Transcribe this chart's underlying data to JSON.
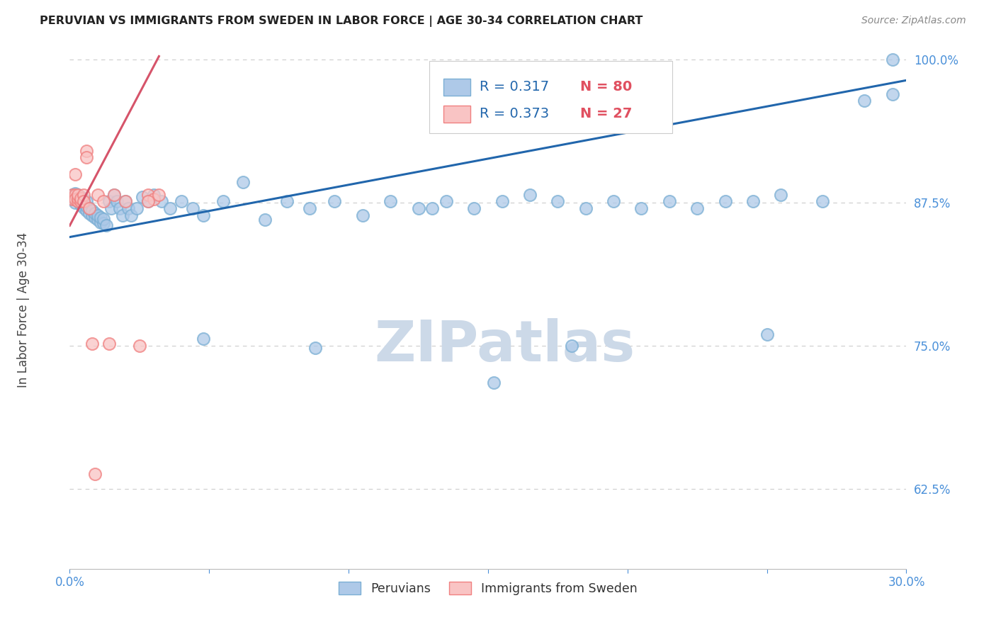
{
  "title": "PERUVIAN VS IMMIGRANTS FROM SWEDEN IN LABOR FORCE | AGE 30-34 CORRELATION CHART",
  "source": "Source: ZipAtlas.com",
  "ylabel": "In Labor Force | Age 30-34",
  "watermark": "ZIPatlas",
  "xlim": [
    0.0,
    0.3
  ],
  "ylim": [
    0.555,
    1.008
  ],
  "xticks": [
    0.0,
    0.05,
    0.1,
    0.15,
    0.2,
    0.25,
    0.3
  ],
  "xticklabels": [
    "0.0%",
    "",
    "",
    "",
    "",
    "",
    "30.0%"
  ],
  "yticks": [
    0.625,
    0.75,
    0.875,
    1.0
  ],
  "yticklabels": [
    "62.5%",
    "75.0%",
    "87.5%",
    "100.0%"
  ],
  "blue_face_color": "#aec9e8",
  "blue_edge_color": "#7bafd4",
  "pink_face_color": "#f9c4c4",
  "pink_edge_color": "#f08080",
  "blue_line_color": "#2166ac",
  "pink_line_color": "#d6546a",
  "title_color": "#222222",
  "source_color": "#888888",
  "tick_color": "#4a90d9",
  "legend_r_color": "#2166ac",
  "legend_n_color": "#e05060",
  "watermark_color": "#ccd9e8",
  "grid_color": "#cccccc",
  "blue_x": [
    0.001,
    0.001,
    0.002,
    0.002,
    0.002,
    0.003,
    0.003,
    0.003,
    0.004,
    0.004,
    0.004,
    0.005,
    0.005,
    0.005,
    0.006,
    0.006,
    0.006,
    0.007,
    0.007,
    0.008,
    0.008,
    0.009,
    0.009,
    0.01,
    0.01,
    0.011,
    0.011,
    0.012,
    0.012,
    0.013,
    0.014,
    0.015,
    0.016,
    0.017,
    0.018,
    0.019,
    0.02,
    0.021,
    0.022,
    0.024,
    0.026,
    0.028,
    0.03,
    0.033,
    0.036,
    0.04,
    0.044,
    0.048,
    0.055,
    0.062,
    0.07,
    0.078,
    0.086,
    0.095,
    0.105,
    0.115,
    0.125,
    0.135,
    0.145,
    0.155,
    0.165,
    0.175,
    0.185,
    0.195,
    0.205,
    0.215,
    0.225,
    0.235,
    0.245,
    0.255,
    0.152,
    0.088,
    0.048,
    0.13,
    0.18,
    0.25,
    0.27,
    0.285,
    0.295,
    0.295
  ],
  "blue_y": [
    0.882,
    0.878,
    0.88,
    0.875,
    0.883,
    0.876,
    0.879,
    0.882,
    0.873,
    0.877,
    0.88,
    0.871,
    0.875,
    0.878,
    0.868,
    0.872,
    0.876,
    0.866,
    0.87,
    0.864,
    0.868,
    0.862,
    0.866,
    0.86,
    0.864,
    0.858,
    0.862,
    0.857,
    0.861,
    0.855,
    0.876,
    0.87,
    0.882,
    0.876,
    0.87,
    0.864,
    0.876,
    0.87,
    0.864,
    0.87,
    0.88,
    0.876,
    0.882,
    0.876,
    0.87,
    0.876,
    0.87,
    0.864,
    0.876,
    0.893,
    0.86,
    0.876,
    0.87,
    0.876,
    0.864,
    0.876,
    0.87,
    0.876,
    0.87,
    0.876,
    0.882,
    0.876,
    0.87,
    0.876,
    0.87,
    0.876,
    0.87,
    0.876,
    0.876,
    0.882,
    0.718,
    0.748,
    0.756,
    0.87,
    0.75,
    0.76,
    0.876,
    0.964,
    0.97,
    1.0
  ],
  "pink_x": [
    0.001,
    0.001,
    0.002,
    0.002,
    0.002,
    0.003,
    0.003,
    0.003,
    0.004,
    0.004,
    0.005,
    0.005,
    0.006,
    0.006,
    0.007,
    0.008,
    0.009,
    0.01,
    0.012,
    0.014,
    0.016,
    0.02,
    0.025,
    0.028,
    0.03,
    0.032,
    0.028
  ],
  "pink_y": [
    0.882,
    0.878,
    0.9,
    0.882,
    0.878,
    0.876,
    0.879,
    0.882,
    0.876,
    0.879,
    0.882,
    0.876,
    0.92,
    0.915,
    0.87,
    0.752,
    0.638,
    0.882,
    0.876,
    0.752,
    0.882,
    0.876,
    0.75,
    0.882,
    0.878,
    0.882,
    0.876
  ],
  "blue_trend_x": [
    0.0,
    0.3
  ],
  "blue_trend_y": [
    0.845,
    0.982
  ],
  "pink_trend_x": [
    0.0,
    0.032
  ],
  "pink_trend_y": [
    0.855,
    1.003
  ]
}
